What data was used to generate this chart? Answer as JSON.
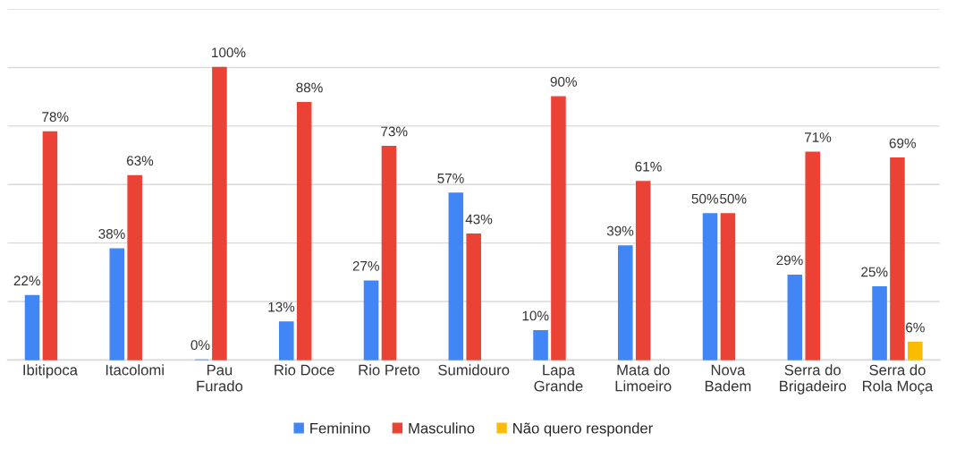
{
  "chart_data": {
    "type": "bar",
    "categories": [
      "Ibitipoca",
      "Itacolomi",
      "Pau\nFurado",
      "Rio Doce",
      "Rio Preto",
      "Sumidouro",
      "Lapa\nGrande",
      "Mata do\nLimoeiro",
      "Nova\nBadem",
      "Serra do\nBrigadeiro",
      "Serra do\nRola Moça"
    ],
    "series": [
      {
        "name": "Feminino",
        "color": "#4285f4",
        "values": [
          22,
          38,
          0,
          13,
          27,
          57,
          10,
          39,
          50,
          29,
          25
        ],
        "value_labels": [
          "22%",
          "38%",
          "0%",
          "13%",
          "27%",
          "57%",
          "10%",
          "39%",
          "50%",
          "29%",
          "25%"
        ]
      },
      {
        "name": "Masculino",
        "color": "#ea4335",
        "values": [
          78,
          63,
          100,
          88,
          73,
          43,
          90,
          61,
          50,
          71,
          69
        ],
        "value_labels": [
          "78%",
          "63%",
          "100%",
          "88%",
          "73%",
          "43%",
          "90%",
          "61%",
          "50%",
          "71%",
          "69%"
        ]
      },
      {
        "name": "Não quero responder",
        "color": "#fbbc04",
        "values": [
          null,
          null,
          null,
          null,
          null,
          null,
          null,
          null,
          null,
          null,
          6
        ],
        "value_labels": [
          null,
          null,
          null,
          null,
          null,
          null,
          null,
          null,
          null,
          null,
          "6%"
        ]
      }
    ],
    "ylim": [
      0,
      120
    ],
    "yticks": [
      {
        "value": 0,
        "label": null
      },
      {
        "value": 20,
        "label": null
      },
      {
        "value": 40,
        "label": null
      },
      {
        "value": 60,
        "label": null
      },
      {
        "value": 80,
        "label": null
      },
      {
        "value": 100,
        "label": null
      },
      {
        "value": 120,
        "label": null
      }
    ],
    "tick_labels": "x",
    "grid": "y",
    "legend": "bottom"
  }
}
